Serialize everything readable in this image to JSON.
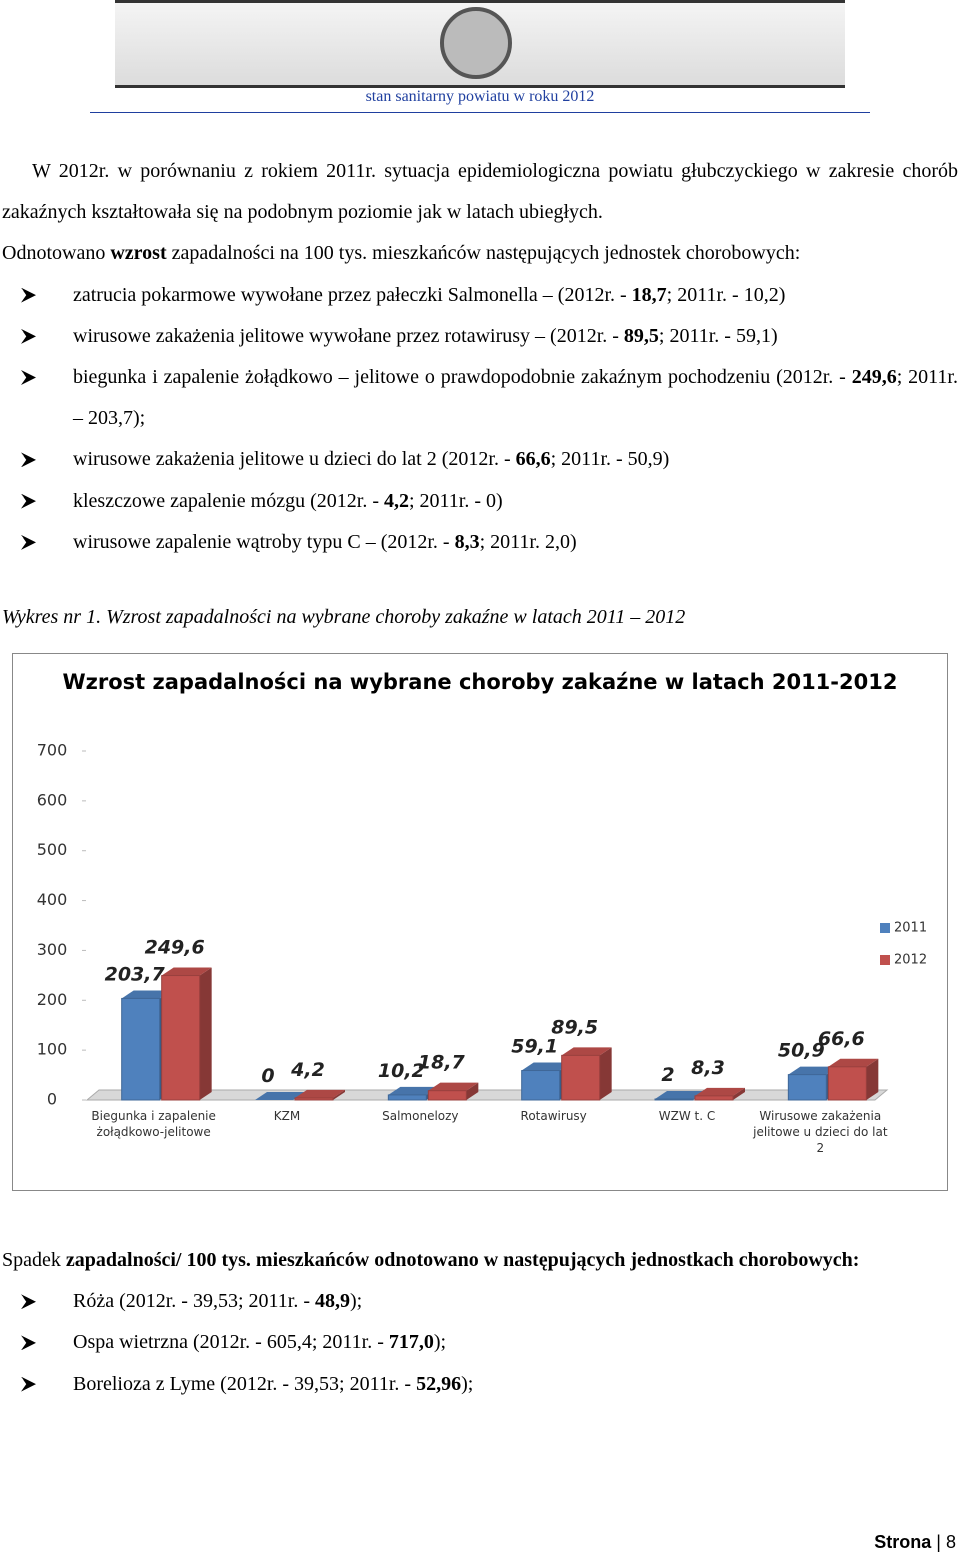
{
  "header": {
    "title": "stan sanitarny powiatu w roku 2012"
  },
  "intro": {
    "paragraph": "W 2012r. w porównaniu z rokiem 2011r. sytuacja epidemiologiczna powiatu głubczyckiego w zakresie chorób zakaźnych kształtowała się na podobnym poziomie jak w latach ubiegłych.",
    "note": [
      "Odnotowano ",
      "wzrost",
      " zapadalności na 100 tys. mieszkańców następujących jednostek chorobowych:"
    ],
    "list": [
      [
        "zatrucia pokarmowe wywołane przez pałeczki Salmonella – (2012r. - ",
        "18,7",
        "; 2011r. - 10,2)"
      ],
      [
        "wirusowe zakażenia jelitowe wywołane przez rotawirusy – (2012r. - ",
        "89,5",
        "; 2011r. - 59,1)"
      ],
      [
        "biegunka i zapalenie żołądkowo – jelitowe o prawdopodobnie zakaźnym pochodzeniu (2012r. - ",
        "249,6",
        "; 2011r. – 203,7);"
      ],
      [
        "wirusowe zakażenia jelitowe u dzieci do lat 2 (2012r. - ",
        "66,6",
        "; 2011r. - 50,9)"
      ],
      [
        "kleszczowe zapalenie mózgu (2012r. - ",
        "4,2",
        "; 2011r. - 0)"
      ],
      [
        "wirusowe zapalenie wątroby typu C – (2012r. - ",
        "8,3",
        "; 2011r. 2,0)"
      ]
    ]
  },
  "caption": "Wykres nr 1. Wzrost zapadalności na wybrane choroby zakaźne w latach 2011 – 2012",
  "chart_data": {
    "type": "bar",
    "title": "Wzrost zapadalności na wybrane choroby zakaźne w latach 2011-2012",
    "categories": [
      "Biegunka i zapalenie żołądkowo-jelitowe",
      "KZM",
      "Salmonelozy",
      "Rotawirusy",
      "WZW t. C",
      "Wirusowe zakażenia jelitowe u dzieci do lat 2"
    ],
    "series": [
      {
        "name": "2011",
        "color": "#4f81bd",
        "values": [
          203.7,
          0,
          10.2,
          59.1,
          2,
          50.9
        ],
        "value_labels": [
          "203,7",
          "0",
          "10,2",
          "59,1",
          "2",
          "50,9"
        ]
      },
      {
        "name": "2012",
        "color": "#c0504d",
        "values": [
          249.6,
          4.2,
          18.7,
          89.5,
          8.3,
          66.6
        ],
        "value_labels": [
          "249,6",
          "4,2",
          "18,7",
          "89,5",
          "8,3",
          "66,6"
        ]
      }
    ],
    "ylim": [
      0,
      700
    ],
    "yticks": [
      0,
      100,
      200,
      300,
      400,
      500,
      600,
      700
    ],
    "legend": "right"
  },
  "decrease": {
    "paragraph": [
      "Spadek",
      " zapadalności/ 100 tys. mieszkańców odnotowano w następujących jednostkach chorobowych:"
    ],
    "list": [
      [
        "Róża (2012r. - 39,53; 2011r. - ",
        "48,9",
        ");"
      ],
      [
        "Ospa wietrzna (2012r. - 605,4; 2011r. - ",
        "717,0",
        ");"
      ],
      [
        "Borelioza z Lyme (2012r. - 39,53; 2011r. - ",
        "52,96",
        ");"
      ]
    ]
  },
  "footer": {
    "label": "Strona",
    "separator": "|",
    "page": "8"
  }
}
